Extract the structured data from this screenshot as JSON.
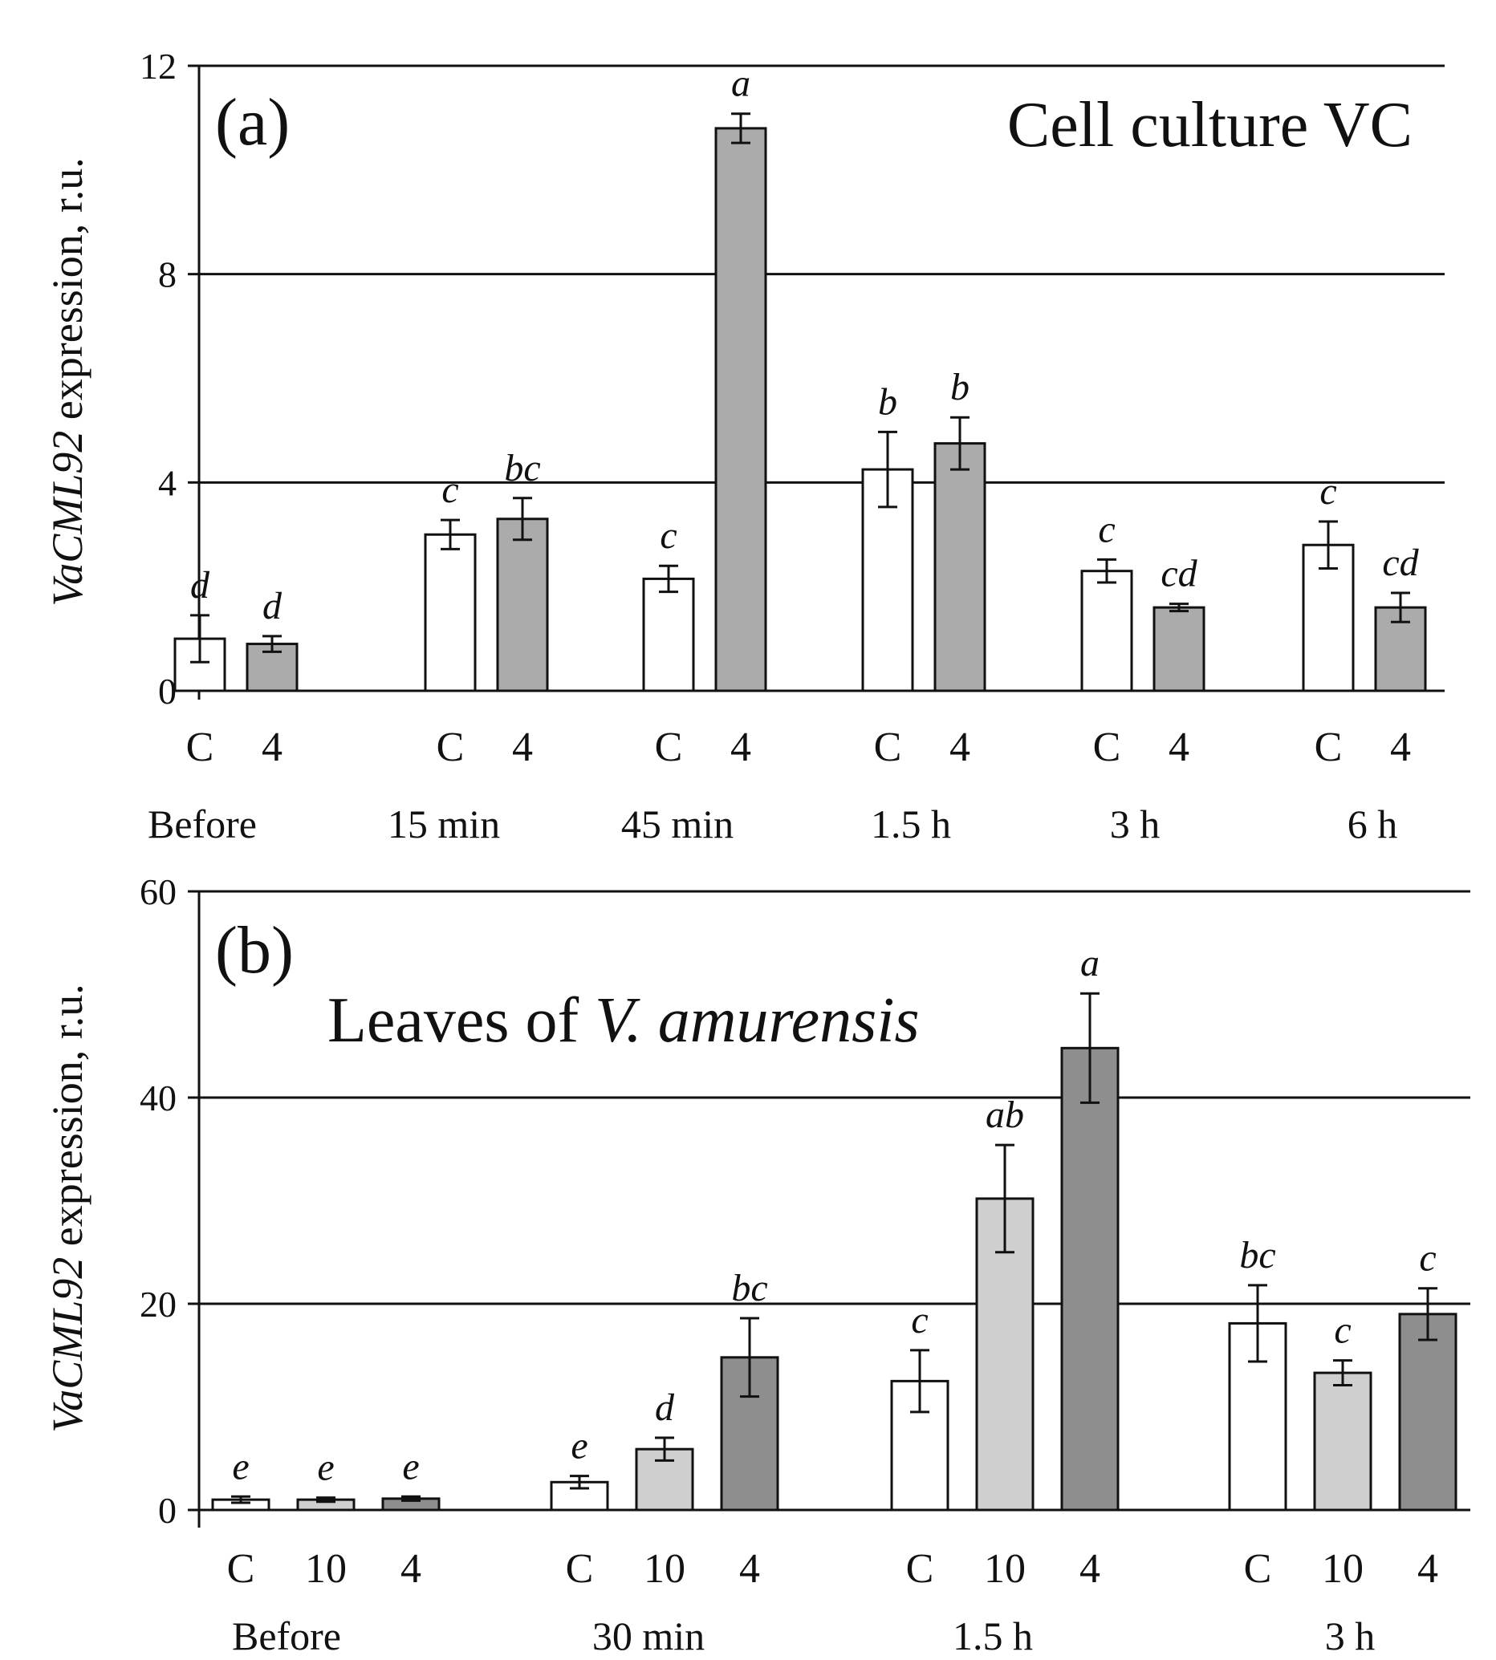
{
  "chart_data": [
    {
      "type": "bar",
      "panel_label": "(a)",
      "title": "Cell culture VC",
      "ylabel": {
        "italic": "VaCML92",
        "rest": " expression, r.u."
      },
      "ylim": [
        0,
        12
      ],
      "yticks": [
        "0",
        "4",
        "8",
        "12"
      ],
      "gridlines": [
        4,
        8,
        12
      ],
      "series_colors": {
        "C": "#ffffff",
        "4": "#ababab"
      },
      "groups": [
        {
          "name": "Before",
          "bars": [
            {
              "label": "C",
              "value": 1.0,
              "err": 0.45,
              "sig": "d"
            },
            {
              "label": "4",
              "value": 0.9,
              "err": 0.15,
              "sig": "d"
            }
          ]
        },
        {
          "name": "15 min",
          "bars": [
            {
              "label": "C",
              "value": 3.0,
              "err": 0.28,
              "sig": "c"
            },
            {
              "label": "4",
              "value": 3.3,
              "err": 0.4,
              "sig": "bc"
            }
          ]
        },
        {
          "name": "45 min",
          "bars": [
            {
              "label": "C",
              "value": 2.15,
              "err": 0.25,
              "sig": "c"
            },
            {
              "label": "4",
              "value": 10.8,
              "err": 0.28,
              "sig": "a"
            }
          ]
        },
        {
          "name": "1.5 h",
          "bars": [
            {
              "label": "C",
              "value": 4.25,
              "err": 0.72,
              "sig": "b"
            },
            {
              "label": "4",
              "value": 4.75,
              "err": 0.5,
              "sig": "b"
            }
          ]
        },
        {
          "name": "3 h",
          "bars": [
            {
              "label": "C",
              "value": 2.3,
              "err": 0.22,
              "sig": "c"
            },
            {
              "label": "4",
              "value": 1.6,
              "err": 0.07,
              "sig": "cd"
            }
          ]
        },
        {
          "name": "6 h",
          "bars": [
            {
              "label": "C",
              "value": 2.8,
              "err": 0.45,
              "sig": "c"
            },
            {
              "label": "4",
              "value": 1.6,
              "err": 0.28,
              "sig": "cd"
            }
          ]
        }
      ]
    },
    {
      "type": "bar",
      "panel_label": "(b)",
      "title": {
        "plain": "Leaves  of ",
        "italic": "V. amurensis"
      },
      "ylabel": {
        "italic": "VaCML92",
        "rest": " expression, r.u."
      },
      "ylim": [
        0,
        60
      ],
      "yticks": [
        "0",
        "20",
        "40",
        "60"
      ],
      "gridlines": [
        20,
        40,
        60
      ],
      "series_colors": {
        "C": "#ffffff",
        "10": "#cfcfcf",
        "4": "#8e8e8e"
      },
      "groups": [
        {
          "name": "Before",
          "bars": [
            {
              "label": "C",
              "value": 1.0,
              "err": 0.3,
              "sig": "e"
            },
            {
              "label": "10",
              "value": 1.0,
              "err": 0.2,
              "sig": "e"
            },
            {
              "label": "4",
              "value": 1.1,
              "err": 0.2,
              "sig": "e"
            }
          ]
        },
        {
          "name": "30 min",
          "bars": [
            {
              "label": "C",
              "value": 2.7,
              "err": 0.6,
              "sig": "e"
            },
            {
              "label": "10",
              "value": 5.9,
              "err": 1.1,
              "sig": "d"
            },
            {
              "label": "4",
              "value": 14.8,
              "err": 3.8,
              "sig": "bc"
            }
          ]
        },
        {
          "name": "1.5 h",
          "bars": [
            {
              "label": "C",
              "value": 12.5,
              "err": 3.0,
              "sig": "c"
            },
            {
              "label": "10",
              "value": 30.2,
              "err": 5.2,
              "sig": "ab"
            },
            {
              "label": "4",
              "value": 44.8,
              "err": 5.3,
              "sig": "a"
            }
          ]
        },
        {
          "name": "3 h",
          "bars": [
            {
              "label": "C",
              "value": 18.1,
              "err": 3.7,
              "sig": "bc"
            },
            {
              "label": "10",
              "value": 13.3,
              "err": 1.2,
              "sig": "c"
            },
            {
              "label": "4",
              "value": 19.0,
              "err": 2.5,
              "sig": "c"
            }
          ]
        }
      ]
    }
  ]
}
